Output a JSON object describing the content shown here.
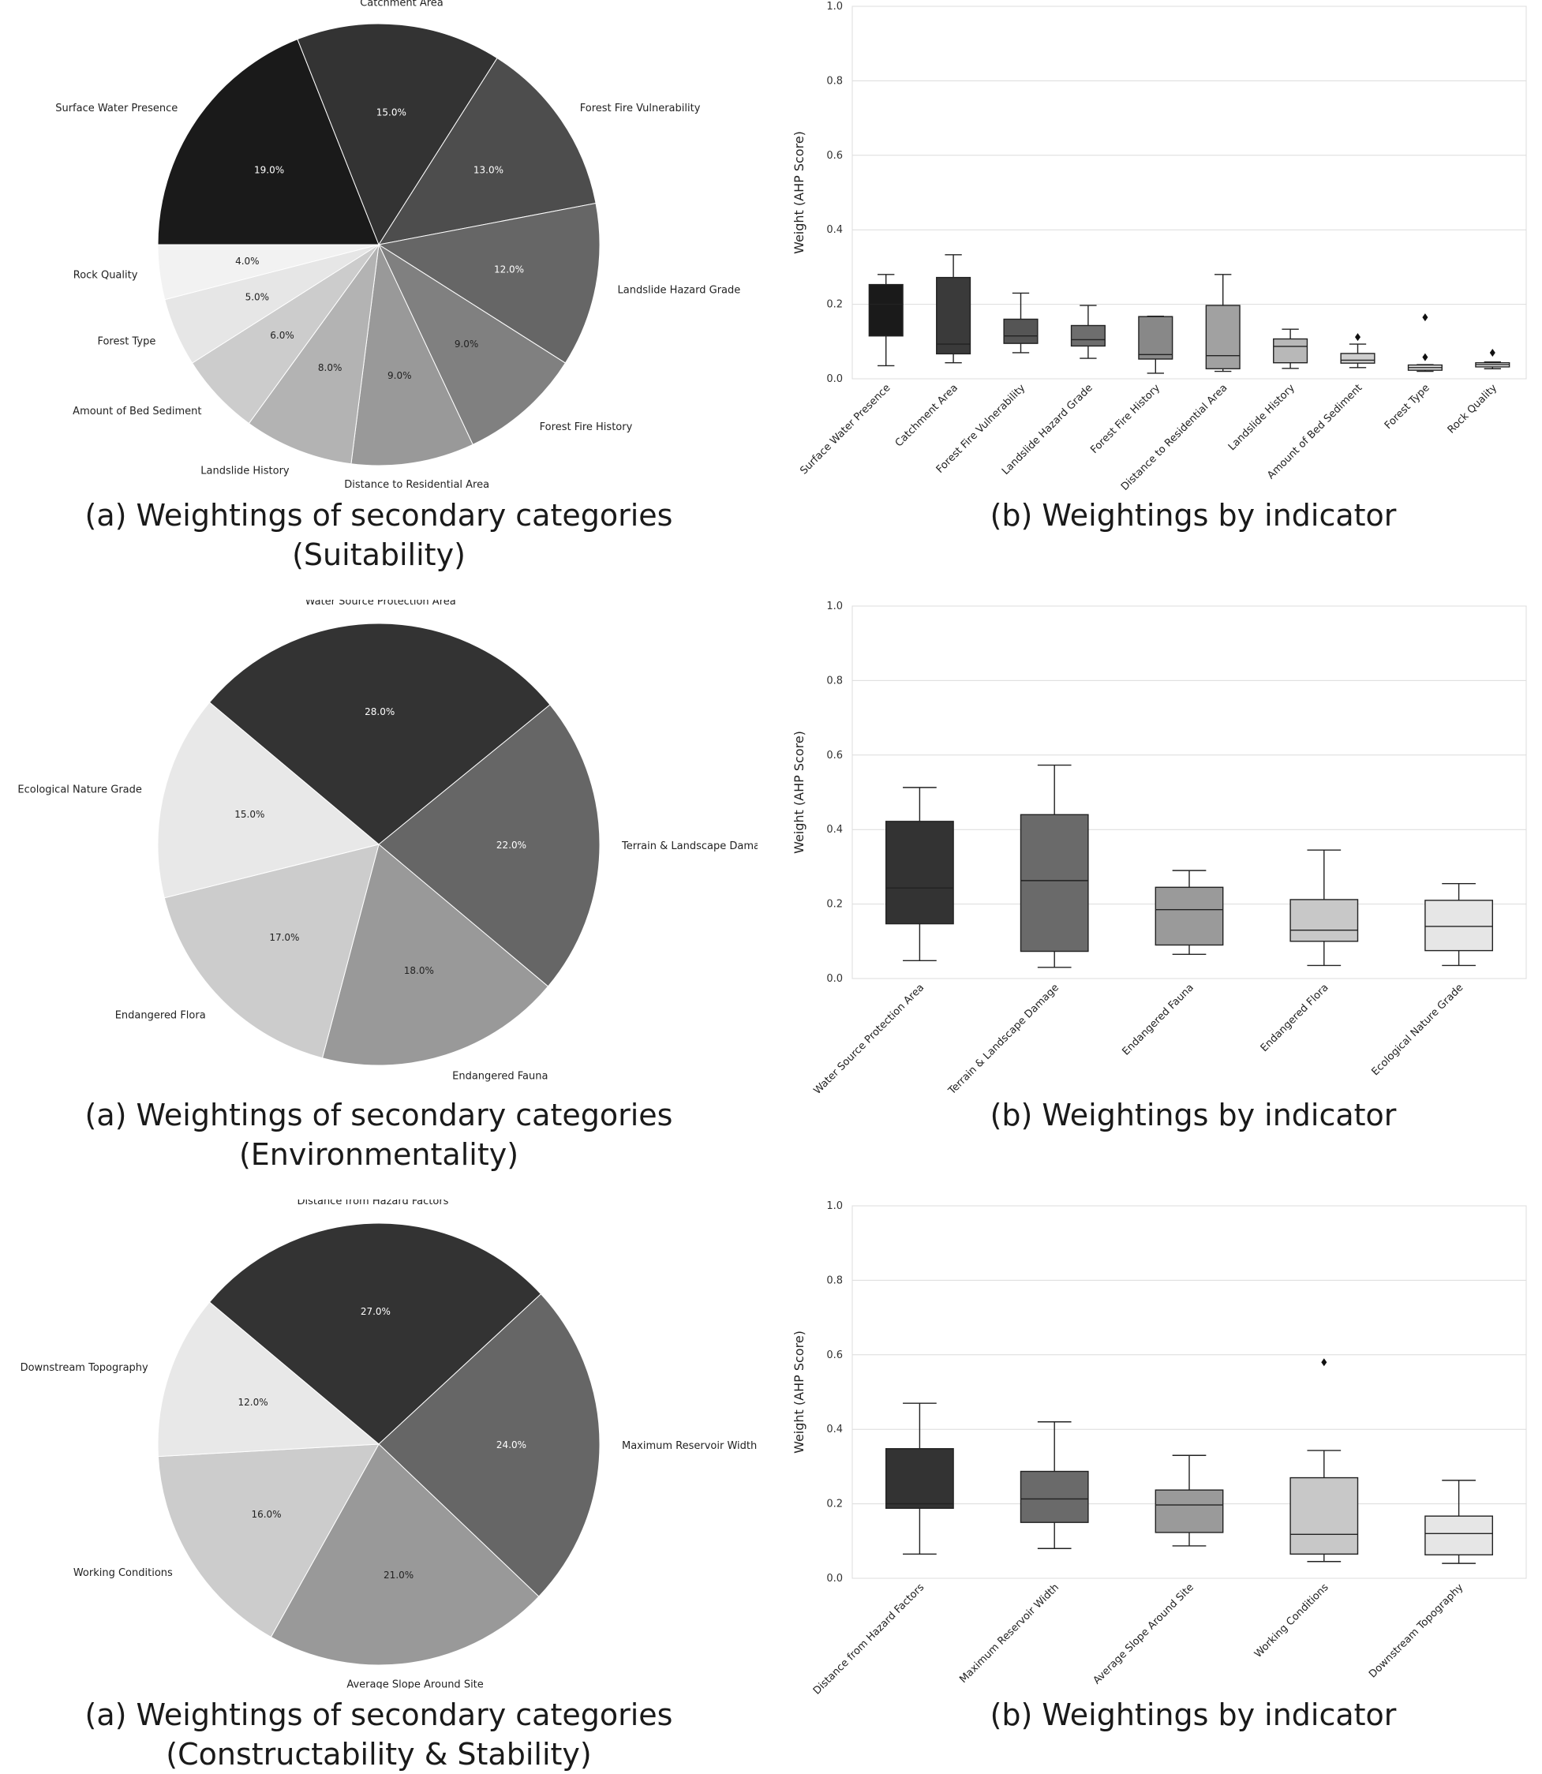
{
  "rows": [
    {
      "pie": {
        "caption_line1": "(a) Weightings of secondary categories",
        "caption_line2": "(Suitability)",
        "chart_data": {
          "type": "pie",
          "labels": [
            "Surface Water Presence",
            "Catchment Area",
            "Forest Fire Vulnerability",
            "Landslide Hazard Grade",
            "Forest Fire History",
            "Distance to Residential Area",
            "Landslide History",
            "Amount of Bed Sediment",
            "Forest Type",
            "Rock Quality"
          ],
          "values": [
            19,
            15,
            13,
            12,
            9,
            9,
            8,
            6,
            5,
            4
          ],
          "pct_labels": [
            "19.0%",
            "15.0%",
            "13.0%",
            "12.0%",
            "9.0%",
            "9.0%",
            "8.0%",
            "6.0%",
            "5.0%",
            "4.0%"
          ],
          "colors": [
            "#1a1a1a",
            "#333333",
            "#4d4d4d",
            "#666666",
            "#808080",
            "#999999",
            "#b3b3b3",
            "#cccccc",
            "#e6e6e6",
            "#f2f2f2"
          ],
          "start_angle_deg": 180
        }
      },
      "box": {
        "caption": "(b) Weightings by indicator",
        "chart_data": {
          "type": "box",
          "ylabel": "Weight (AHP Score)",
          "ylim": [
            0,
            1.0
          ],
          "yticks": [
            "0.0",
            "0.2",
            "0.4",
            "0.6",
            "0.8",
            "1.0"
          ],
          "grid": true,
          "categories": [
            "Surface Water Presence",
            "Catchment Area",
            "Forest Fire Vulnerability",
            "Landslide Hazard Grade",
            "Forest Fire History",
            "Distance to Residential Area",
            "Landslide History",
            "Amount of Bed Sediment",
            "Forest Type",
            "Rock Quality"
          ],
          "boxes": [
            {
              "whislo": 0.035,
              "q1": 0.115,
              "med": 0.2,
              "q3": 0.253,
              "whishi": 0.28,
              "fliers": [],
              "color": "#1a1a1a"
            },
            {
              "whislo": 0.043,
              "q1": 0.067,
              "med": 0.093,
              "q3": 0.272,
              "whishi": 0.333,
              "fliers": [],
              "color": "#3a3a3a"
            },
            {
              "whislo": 0.07,
              "q1": 0.095,
              "med": 0.115,
              "q3": 0.16,
              "whishi": 0.23,
              "fliers": [],
              "color": "#555555"
            },
            {
              "whislo": 0.055,
              "q1": 0.088,
              "med": 0.105,
              "q3": 0.143,
              "whishi": 0.197,
              "fliers": [],
              "color": "#6e6e6e"
            },
            {
              "whislo": 0.015,
              "q1": 0.053,
              "med": 0.065,
              "q3": 0.167,
              "whishi": 0.168,
              "fliers": [],
              "color": "#888888"
            },
            {
              "whislo": 0.02,
              "q1": 0.027,
              "med": 0.062,
              "q3": 0.197,
              "whishi": 0.28,
              "fliers": [],
              "color": "#a1a1a1"
            },
            {
              "whislo": 0.028,
              "q1": 0.043,
              "med": 0.087,
              "q3": 0.107,
              "whishi": 0.133,
              "fliers": [],
              "color": "#b8b8b8"
            },
            {
              "whislo": 0.03,
              "q1": 0.042,
              "med": 0.05,
              "q3": 0.068,
              "whishi": 0.093,
              "fliers": [
                0.112
              ],
              "color": "#cecece"
            },
            {
              "whislo": 0.02,
              "q1": 0.023,
              "med": 0.03,
              "q3": 0.037,
              "whishi": 0.038,
              "fliers": [
                0.058,
                0.165
              ],
              "color": "#e0e0e0"
            },
            {
              "whislo": 0.027,
              "q1": 0.032,
              "med": 0.038,
              "q3": 0.043,
              "whishi": 0.045,
              "fliers": [
                0.07
              ],
              "color": "#eeeeee"
            }
          ]
        }
      }
    },
    {
      "pie": {
        "caption_line1": "(a) Weightings of secondary categories",
        "caption_line2": "(Environmentality)",
        "chart_data": {
          "type": "pie",
          "labels": [
            "Water Source Protection Area",
            "Terrain & Landscape Damage",
            "Endangered Fauna",
            "Endangered Flora",
            "Ecological Nature Grade"
          ],
          "values": [
            28,
            22,
            18,
            17,
            15
          ],
          "pct_labels": [
            "28.0%",
            "22.0%",
            "18.0%",
            "17.0%",
            "15.0%"
          ],
          "colors": [
            "#333333",
            "#666666",
            "#999999",
            "#cccccc",
            "#e8e8e8"
          ],
          "start_angle_deg": 140
        }
      },
      "box": {
        "caption": "(b) Weightings by indicator",
        "chart_data": {
          "type": "box",
          "ylabel": "Weight (AHP Score)",
          "ylim": [
            0,
            1.0
          ],
          "yticks": [
            "0.0",
            "0.2",
            "0.4",
            "0.6",
            "0.8",
            "1.0"
          ],
          "grid": true,
          "categories": [
            "Water Source Protection Area",
            "Terrain & Landscape Damage",
            "Endangered Fauna",
            "Endangered Flora",
            "Ecological Nature Grade"
          ],
          "boxes": [
            {
              "whislo": 0.048,
              "q1": 0.147,
              "med": 0.243,
              "q3": 0.422,
              "whishi": 0.513,
              "fliers": [],
              "color": "#333333"
            },
            {
              "whislo": 0.03,
              "q1": 0.073,
              "med": 0.263,
              "q3": 0.44,
              "whishi": 0.573,
              "fliers": [],
              "color": "#6a6a6a"
            },
            {
              "whislo": 0.065,
              "q1": 0.09,
              "med": 0.185,
              "q3": 0.245,
              "whishi": 0.29,
              "fliers": [],
              "color": "#9a9a9a"
            },
            {
              "whislo": 0.035,
              "q1": 0.1,
              "med": 0.13,
              "q3": 0.212,
              "whishi": 0.345,
              "fliers": [],
              "color": "#c8c8c8"
            },
            {
              "whislo": 0.035,
              "q1": 0.075,
              "med": 0.14,
              "q3": 0.21,
              "whishi": 0.255,
              "fliers": [],
              "color": "#e6e6e6"
            }
          ]
        }
      }
    },
    {
      "pie": {
        "caption_line1": "(a) Weightings of secondary categories",
        "caption_line2": "(Constructability & Stability)",
        "chart_data": {
          "type": "pie",
          "labels": [
            "Distance from Hazard Factors",
            "Maximum Reservoir Width",
            "Average Slope Around Site",
            "Working Conditions",
            "Downstream Topography"
          ],
          "values": [
            27,
            24,
            21,
            16,
            12
          ],
          "pct_labels": [
            "27.0%",
            "24.0%",
            "21.0%",
            "16.0%",
            "12.0%"
          ],
          "colors": [
            "#333333",
            "#666666",
            "#999999",
            "#cccccc",
            "#e8e8e8"
          ],
          "start_angle_deg": 140
        }
      },
      "box": {
        "caption": "(b) Weightings by indicator",
        "chart_data": {
          "type": "box",
          "ylabel": "Weight (AHP Score)",
          "ylim": [
            0,
            1.0
          ],
          "yticks": [
            "0.0",
            "0.2",
            "0.4",
            "0.6",
            "0.8",
            "1.0"
          ],
          "grid": true,
          "categories": [
            "Distance from Hazard Factors",
            "Maximum Reservoir Width",
            "Average Slope Around Site",
            "Working Conditions",
            "Downstream Topography"
          ],
          "boxes": [
            {
              "whislo": 0.065,
              "q1": 0.188,
              "med": 0.2,
              "q3": 0.348,
              "whishi": 0.47,
              "fliers": [],
              "color": "#333333"
            },
            {
              "whislo": 0.08,
              "q1": 0.15,
              "med": 0.213,
              "q3": 0.287,
              "whishi": 0.42,
              "fliers": [],
              "color": "#6a6a6a"
            },
            {
              "whislo": 0.087,
              "q1": 0.123,
              "med": 0.197,
              "q3": 0.237,
              "whishi": 0.33,
              "fliers": [],
              "color": "#9a9a9a"
            },
            {
              "whislo": 0.045,
              "q1": 0.065,
              "med": 0.118,
              "q3": 0.27,
              "whishi": 0.343,
              "fliers": [
                0.58
              ],
              "color": "#c8c8c8"
            },
            {
              "whislo": 0.04,
              "q1": 0.063,
              "med": 0.12,
              "q3": 0.167,
              "whishi": 0.263,
              "fliers": [],
              "color": "#e6e6e6"
            }
          ]
        }
      }
    }
  ]
}
